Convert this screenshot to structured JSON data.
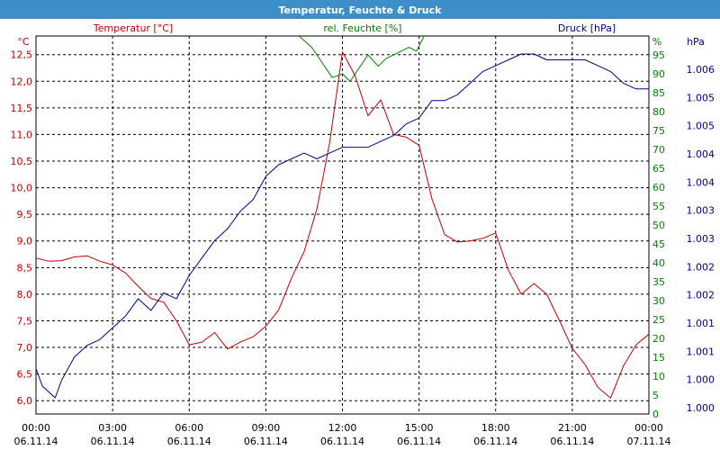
{
  "chart_data": {
    "type": "line",
    "title": "Temperatur, Feuchte & Druck",
    "colors": {
      "title_bar": "#3d8fc9",
      "temperature": "#c00000",
      "humidity": "#008000",
      "pressure": "#00008b",
      "grid": "#000000"
    },
    "grid": true,
    "x_axis": {
      "range": [
        "06.11.14 00:00",
        "07.11.14 00:00"
      ],
      "ticks": [
        {
          "time": "00:00",
          "date": "06.11.14"
        },
        {
          "time": "03:00",
          "date": "06.11.14"
        },
        {
          "time": "06:00",
          "date": "06.11.14"
        },
        {
          "time": "09:00",
          "date": "06.11.14"
        },
        {
          "time": "12:00",
          "date": "06.11.14"
        },
        {
          "time": "15:00",
          "date": "06.11.14"
        },
        {
          "time": "18:00",
          "date": "06.11.14"
        },
        {
          "time": "21:00",
          "date": "06.11.14"
        },
        {
          "time": "00:00",
          "date": "07.11.14"
        }
      ]
    },
    "y_axes": {
      "temperature": {
        "unit": "°C",
        "label": "Temperatur [°C]",
        "range": [
          5.75,
          12.85
        ],
        "ticks": [
          "12,5",
          "12,0",
          "11,5",
          "11,0",
          "10,5",
          "10,0",
          "9,5",
          "9,0",
          "8,5",
          "8,0",
          "7,5",
          "7,0",
          "6,5",
          "6,0"
        ]
      },
      "humidity": {
        "unit": "%",
        "label": "rel. Feuchte [%]",
        "range": [
          0,
          100
        ],
        "ticks": [
          "95",
          "90",
          "85",
          "80",
          "75",
          "70",
          "65",
          "60",
          "55",
          "50",
          "45",
          "40",
          "35",
          "30",
          "25",
          "20",
          "15",
          "10",
          "5",
          "0"
        ]
      },
      "pressure": {
        "unit": "hPa",
        "label": "Druck [hPa]",
        "ticks": [
          "1.006",
          "1.005",
          "1.005",
          "1.004",
          "1.004",
          "1.003",
          "1.003",
          "1.002",
          "1.002",
          "1.001",
          "1.001",
          "1.000",
          "1.000"
        ]
      }
    },
    "series": [
      {
        "name": "Temperatur [°C]",
        "axis": "temperature",
        "x_hours": [
          0,
          0.5,
          1,
          1.5,
          2,
          2.5,
          3,
          3.5,
          4,
          4.5,
          5,
          5.5,
          6,
          6.5,
          7,
          7.5,
          8,
          8.5,
          9,
          9.5,
          10,
          10.5,
          11,
          11.5,
          12,
          12.5,
          13,
          13.5,
          14,
          14.5,
          15,
          15.5,
          16,
          16.5,
          17,
          17.5,
          18,
          18.5,
          19,
          19.5,
          20,
          20.5,
          21,
          21.5,
          22,
          22.5,
          23,
          23.5,
          24
        ],
        "values": [
          8.68,
          8.62,
          8.63,
          8.7,
          8.72,
          8.62,
          8.55,
          8.4,
          8.15,
          7.92,
          7.85,
          7.5,
          7.05,
          7.1,
          7.28,
          6.97,
          7.1,
          7.2,
          7.4,
          7.7,
          8.3,
          8.8,
          9.6,
          10.85,
          12.55,
          12.1,
          11.35,
          11.65,
          11.0,
          10.95,
          10.8,
          9.8,
          9.12,
          8.98,
          9.0,
          9.05,
          9.15,
          8.45,
          8.0,
          8.2,
          8.0,
          7.5,
          6.98,
          6.68,
          6.25,
          6.05,
          6.65,
          7.05,
          7.25
        ]
      },
      {
        "name": "rel. Feuchte [%]",
        "axis": "humidity",
        "x_hours": [
          10.3,
          10.8,
          11.2,
          11.6,
          12.0,
          12.3,
          12.6,
          13.0,
          13.4,
          13.7,
          14.0,
          14.3,
          14.6,
          14.9,
          15.2
        ],
        "values": [
          100,
          97,
          93,
          89,
          90,
          88,
          91,
          95,
          92,
          94,
          95,
          96,
          97,
          96,
          100
        ]
      },
      {
        "name": "Druck [hPa]",
        "axis": "pressure",
        "x_hours": [
          0,
          0.25,
          0.5,
          0.75,
          1,
          1.5,
          2,
          2.5,
          3,
          3.5,
          4,
          4.5,
          5,
          5.5,
          6,
          6.5,
          7,
          7.5,
          8,
          8.5,
          9,
          9.5,
          10,
          10.5,
          11,
          11.5,
          12,
          12.5,
          13,
          13.5,
          14,
          14.5,
          15,
          15.5,
          16,
          16.5,
          17,
          17.5,
          18,
          18.5,
          19,
          19.5,
          20,
          20.5,
          21,
          21.5,
          22,
          22.5,
          23,
          23.5,
          24
        ],
        "values": [
          1.0009,
          1.0006,
          1.0005,
          1.0004,
          1.0007,
          1.0011,
          1.0013,
          1.0014,
          1.0016,
          1.0018,
          1.0021,
          1.0019,
          1.0022,
          1.0021,
          1.0025,
          1.0028,
          1.0031,
          1.0033,
          1.0036,
          1.0038,
          1.0042,
          1.0044,
          1.0045,
          1.0046,
          1.0045,
          1.0046,
          1.0047,
          1.0047,
          1.0047,
          1.0048,
          1.0049,
          1.0051,
          1.0052,
          1.0055,
          1.0055,
          1.0056,
          1.0058,
          1.006,
          1.0061,
          1.0062,
          1.0063,
          1.0063,
          1.0062,
          1.0062,
          1.0062,
          1.0062,
          1.0061,
          1.006,
          1.0058,
          1.0057,
          1.0057
        ]
      }
    ]
  }
}
